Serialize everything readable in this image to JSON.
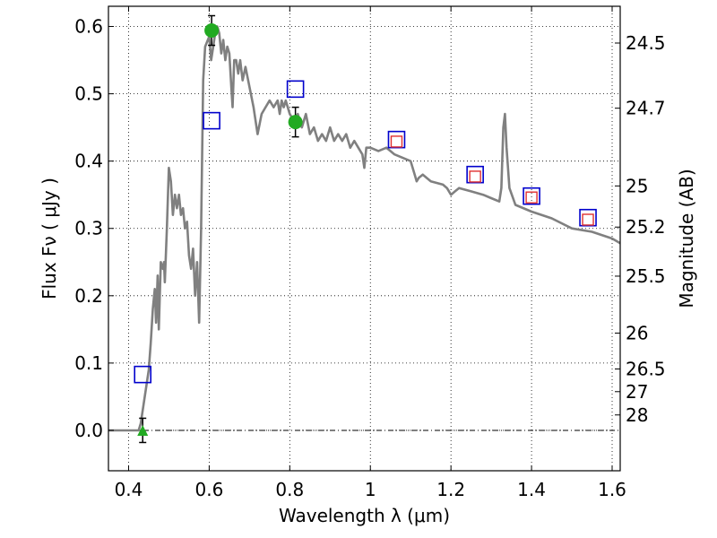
{
  "chart_data": {
    "type": "line",
    "xlabel": "Wavelength  λ (μm)",
    "ylabel": "Flux  Fν ( μJy )",
    "y2label": "Magnitude (AB)",
    "xlim": [
      0.35,
      1.62
    ],
    "ylim": [
      -0.06,
      0.63
    ],
    "grid": true,
    "xticks": [
      {
        "value": 0.4,
        "label": "0.4"
      },
      {
        "value": 0.6,
        "label": "0.6"
      },
      {
        "value": 0.8,
        "label": "0.8"
      },
      {
        "value": 1.0,
        "label": "1"
      },
      {
        "value": 1.2,
        "label": "1.2"
      },
      {
        "value": 1.4,
        "label": "1.4"
      },
      {
        "value": 1.6,
        "label": "1.6"
      }
    ],
    "yticks": [
      {
        "value": 0.0,
        "label": "0.0"
      },
      {
        "value": 0.1,
        "label": "0.1"
      },
      {
        "value": 0.2,
        "label": "0.2"
      },
      {
        "value": 0.3,
        "label": "0.3"
      },
      {
        "value": 0.4,
        "label": "0.4"
      },
      {
        "value": 0.5,
        "label": "0.5"
      },
      {
        "value": 0.6,
        "label": "0.6"
      }
    ],
    "y2ticks": [
      {
        "flux": 0.5754,
        "label": "24.5"
      },
      {
        "flux": 0.4786,
        "label": "24.7"
      },
      {
        "flux": 0.3631,
        "label": "25"
      },
      {
        "flux": 0.302,
        "label": "25.2"
      },
      {
        "flux": 0.2291,
        "label": "25.5"
      },
      {
        "flux": 0.1445,
        "label": "26"
      },
      {
        "flux": 0.0912,
        "label": "26.5"
      },
      {
        "flux": 0.0575,
        "label": "27"
      },
      {
        "flux": 0.0229,
        "label": "28"
      }
    ],
    "series": [
      {
        "kind": "sed_model",
        "color": "#808080",
        "points": [
          [
            0.35,
            0.0
          ],
          [
            0.425,
            0.0
          ],
          [
            0.43,
            0.01
          ],
          [
            0.44,
            0.05
          ],
          [
            0.45,
            0.09
          ],
          [
            0.455,
            0.13
          ],
          [
            0.46,
            0.18
          ],
          [
            0.465,
            0.21
          ],
          [
            0.468,
            0.16
          ],
          [
            0.472,
            0.23
          ],
          [
            0.475,
            0.15
          ],
          [
            0.48,
            0.25
          ],
          [
            0.485,
            0.24
          ],
          [
            0.488,
            0.25
          ],
          [
            0.49,
            0.22
          ],
          [
            0.495,
            0.3
          ],
          [
            0.5,
            0.39
          ],
          [
            0.505,
            0.37
          ],
          [
            0.51,
            0.32
          ],
          [
            0.515,
            0.35
          ],
          [
            0.52,
            0.33
          ],
          [
            0.525,
            0.35
          ],
          [
            0.53,
            0.32
          ],
          [
            0.535,
            0.33
          ],
          [
            0.54,
            0.3
          ],
          [
            0.545,
            0.31
          ],
          [
            0.55,
            0.26
          ],
          [
            0.555,
            0.24
          ],
          [
            0.56,
            0.27
          ],
          [
            0.565,
            0.2
          ],
          [
            0.57,
            0.25
          ],
          [
            0.575,
            0.16
          ],
          [
            0.58,
            0.3
          ],
          [
            0.585,
            0.52
          ],
          [
            0.59,
            0.57
          ],
          [
            0.6,
            0.585
          ],
          [
            0.605,
            0.55
          ],
          [
            0.61,
            0.57
          ],
          [
            0.615,
            0.59
          ],
          [
            0.62,
            0.6
          ],
          [
            0.625,
            0.59
          ],
          [
            0.63,
            0.56
          ],
          [
            0.635,
            0.58
          ],
          [
            0.64,
            0.55
          ],
          [
            0.645,
            0.57
          ],
          [
            0.65,
            0.56
          ],
          [
            0.655,
            0.51
          ],
          [
            0.658,
            0.48
          ],
          [
            0.662,
            0.55
          ],
          [
            0.667,
            0.55
          ],
          [
            0.672,
            0.53
          ],
          [
            0.677,
            0.55
          ],
          [
            0.683,
            0.52
          ],
          [
            0.69,
            0.54
          ],
          [
            0.7,
            0.51
          ],
          [
            0.71,
            0.48
          ],
          [
            0.72,
            0.44
          ],
          [
            0.73,
            0.47
          ],
          [
            0.74,
            0.48
          ],
          [
            0.75,
            0.49
          ],
          [
            0.76,
            0.48
          ],
          [
            0.77,
            0.49
          ],
          [
            0.775,
            0.47
          ],
          [
            0.78,
            0.49
          ],
          [
            0.785,
            0.48
          ],
          [
            0.79,
            0.49
          ],
          [
            0.8,
            0.47
          ],
          [
            0.81,
            0.46
          ],
          [
            0.82,
            0.47
          ],
          [
            0.83,
            0.45
          ],
          [
            0.84,
            0.47
          ],
          [
            0.85,
            0.44
          ],
          [
            0.86,
            0.45
          ],
          [
            0.87,
            0.43
          ],
          [
            0.88,
            0.44
          ],
          [
            0.89,
            0.43
          ],
          [
            0.9,
            0.45
          ],
          [
            0.91,
            0.43
          ],
          [
            0.92,
            0.44
          ],
          [
            0.93,
            0.43
          ],
          [
            0.94,
            0.44
          ],
          [
            0.95,
            0.42
          ],
          [
            0.96,
            0.43
          ],
          [
            0.97,
            0.42
          ],
          [
            0.98,
            0.41
          ],
          [
            0.985,
            0.39
          ],
          [
            0.99,
            0.42
          ],
          [
            1.0,
            0.42
          ],
          [
            1.02,
            0.415
          ],
          [
            1.04,
            0.42
          ],
          [
            1.06,
            0.41
          ],
          [
            1.08,
            0.405
          ],
          [
            1.1,
            0.4
          ],
          [
            1.11,
            0.38
          ],
          [
            1.115,
            0.37
          ],
          [
            1.12,
            0.375
          ],
          [
            1.13,
            0.38
          ],
          [
            1.15,
            0.37
          ],
          [
            1.18,
            0.365
          ],
          [
            1.19,
            0.36
          ],
          [
            1.2,
            0.35
          ],
          [
            1.21,
            0.355
          ],
          [
            1.22,
            0.36
          ],
          [
            1.25,
            0.355
          ],
          [
            1.28,
            0.35
          ],
          [
            1.3,
            0.345
          ],
          [
            1.32,
            0.34
          ],
          [
            1.325,
            0.36
          ],
          [
            1.33,
            0.45
          ],
          [
            1.334,
            0.47
          ],
          [
            1.338,
            0.42
          ],
          [
            1.345,
            0.36
          ],
          [
            1.36,
            0.335
          ],
          [
            1.4,
            0.325
          ],
          [
            1.45,
            0.315
          ],
          [
            1.5,
            0.3
          ],
          [
            1.55,
            0.295
          ],
          [
            1.6,
            0.285
          ],
          [
            1.62,
            0.278
          ]
        ]
      },
      {
        "kind": "model_bands",
        "marker": "open-square",
        "color": "#0000cc",
        "points": [
          {
            "x": 0.435,
            "y": 0.083
          },
          {
            "x": 0.606,
            "y": 0.46
          },
          {
            "x": 0.814,
            "y": 0.507
          },
          {
            "x": 1.065,
            "y": 0.432
          },
          {
            "x": 1.26,
            "y": 0.38
          },
          {
            "x": 1.4,
            "y": 0.348
          },
          {
            "x": 1.54,
            "y": 0.316
          }
        ]
      },
      {
        "kind": "observed",
        "marker": "open-square-small",
        "color": "#e03030",
        "points": [
          {
            "x": 1.065,
            "y": 0.429
          },
          {
            "x": 1.26,
            "y": 0.377
          },
          {
            "x": 1.4,
            "y": 0.346
          },
          {
            "x": 1.54,
            "y": 0.313
          }
        ]
      },
      {
        "kind": "observed",
        "marker": "filled-circle",
        "color": "#22aa22",
        "points": [
          {
            "x": 0.606,
            "y": 0.594,
            "err": 0.022
          },
          {
            "x": 0.814,
            "y": 0.458,
            "err": 0.022
          }
        ]
      },
      {
        "kind": "upper_limit",
        "marker": "filled-triangle",
        "color": "#22aa22",
        "points": [
          {
            "x": 0.435,
            "y": 0.0,
            "err": 0.018
          }
        ]
      }
    ]
  }
}
